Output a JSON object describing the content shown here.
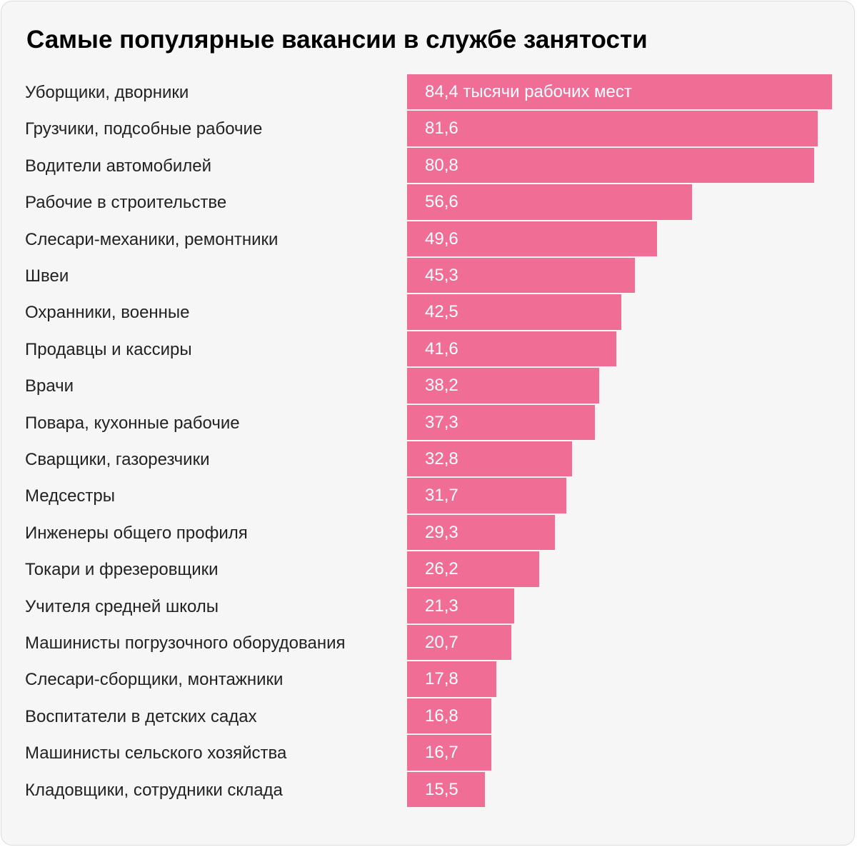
{
  "colors": {
    "bar": "#f06e96",
    "background": "#f6f6f6",
    "text": "#222222",
    "bar_text": "#ffffff"
  },
  "chart_data": {
    "type": "bar",
    "orientation": "horizontal",
    "title": "Самые популярные вакансии в службе занятости",
    "value_unit_label": "тысячи рабочих мест",
    "xlim": [
      0,
      84.4
    ],
    "grid": false,
    "categories": [
      "Уборщики, дворники",
      "Грузчики, подсобные рабочие",
      "Водители автомобилей",
      "Рабочие в строительстве",
      "Слесари-механики, ремонтники",
      "Швеи",
      "Охранники, военные",
      "Продавцы и кассиры",
      "Врачи",
      "Повара, кухонные рабочие",
      "Сварщики, газорезчики",
      "Медсестры",
      "Инженеры общего профиля",
      "Токари и фрезеровщики",
      "Учителя средней школы",
      "Машинисты погрузочного оборудования",
      "Слесари-сборщики, монтажники",
      "Воспитатели в детских садах",
      "Машинисты сельского хозяйства",
      "Кладовщики, сотрудники склада"
    ],
    "values": [
      84.4,
      81.6,
      80.8,
      56.6,
      49.6,
      45.3,
      42.5,
      41.6,
      38.2,
      37.3,
      32.8,
      31.7,
      29.3,
      26.2,
      21.3,
      20.7,
      17.8,
      16.8,
      16.7,
      15.5
    ],
    "data_labels": [
      "84,4 тысячи рабочих мест",
      "81,6",
      "80,8",
      "56,6",
      "49,6",
      "45,3",
      "42,5",
      "41,6",
      "38,2",
      "37,3",
      "32,8",
      "31,7",
      "29,3",
      "26,2",
      "21,3",
      "20,7",
      "17,8",
      "16,8",
      "16,7",
      "15,5"
    ]
  }
}
